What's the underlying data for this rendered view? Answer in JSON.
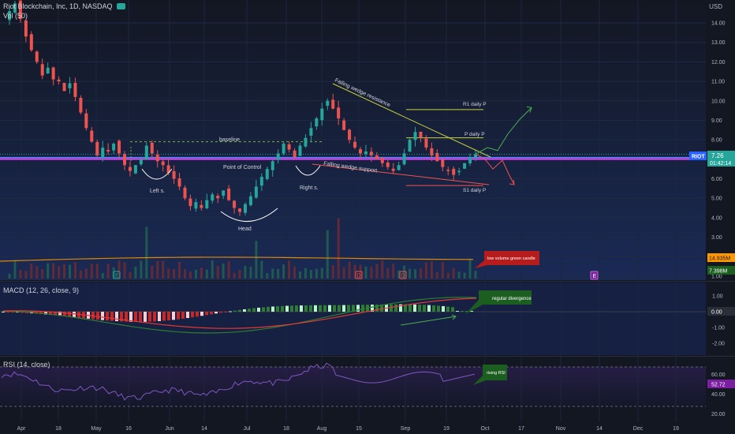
{
  "header": {
    "symbol_title": "Riot Blockchain, Inc, 1D, NASDAQ",
    "volume_title": "Vol (50)",
    "macd_title": "MACD (12, 26, close, 9)",
    "rsi_title": "RSI (14, close)",
    "currency": "USD"
  },
  "price_axis_labels": [
    "14.00",
    "13.00",
    "12.00",
    "11.00",
    "10.00",
    "9.00",
    "8.00",
    "7.00",
    "6.00",
    "5.00",
    "4.00",
    "3.00",
    "2.00",
    "1.00"
  ],
  "macd_axis_labels": [
    "1.00",
    "0.00",
    "-1.00",
    "-2.00"
  ],
  "rsi_axis_labels": [
    "60.00",
    "40.00",
    "20.00"
  ],
  "time_axis": [
    "Apr",
    "18",
    "May",
    "16",
    "Jun",
    "14",
    "Jul",
    "18",
    "Aug",
    "15",
    "Sep",
    "19",
    "Oct",
    "17",
    "Nov",
    "14",
    "Dec",
    "19"
  ],
  "badges": {
    "ticker": "RIOT",
    "last_price": "7.26",
    "countdown": "01:42:14",
    "vol_ma": "14.935M",
    "vol_last": "7.398M",
    "macd_value": "0.00",
    "rsi_value": "52.72"
  },
  "event_markers": [
    "E",
    "D",
    "D",
    "E"
  ],
  "annotations": {
    "baseline": "baseline",
    "poc": "Point of Control",
    "left_shoulder": "Left s.",
    "head": "Head",
    "right_shoulder": "Right s.",
    "fw_resistance": "Falling wedge resistance",
    "fw_support": "Falling wedge support",
    "r1": "R1 daily P",
    "p": "P daily P",
    "s1": "S1 daily P",
    "callout_volume": "low volume green candle",
    "callout_macd": "regular divergence",
    "callout_rsi": "rising RSI"
  },
  "colors": {
    "bull": "#26a69a",
    "bear": "#ef5350",
    "green_line": "#4caf50",
    "poc": "#e040fb",
    "yellow": "#c8d13b",
    "macd": "#2e7d32",
    "signal": "#e53935",
    "rsi": "#7e57c2",
    "callout_red": "#b71c1c",
    "callout_green": "#1b5e20"
  },
  "chart_data": {
    "type": "candlestick",
    "price_range": [
      0.8,
      15.0
    ],
    "levels": {
      "point_of_control": 7.05,
      "baseline": 7.9,
      "r1_daily_pivot": 9.55,
      "daily_pivot": 8.1,
      "s1_daily_pivot": 5.65
    },
    "close_path": [
      14.6,
      15.0,
      14.2,
      13.3,
      12.6,
      12.0,
      11.3,
      11.7,
      11.1,
      11.0,
      10.5,
      10.9,
      10.2,
      9.4,
      8.6,
      7.9,
      7.2,
      7.6,
      7.4,
      7.8,
      7.3,
      6.7,
      6.4,
      6.7,
      7.0,
      7.7,
      7.3,
      6.9,
      6.7,
      6.3,
      6.0,
      5.6,
      5.0,
      4.6,
      4.8,
      4.5,
      4.9,
      5.2,
      5.0,
      5.4,
      4.9,
      4.5,
      4.3,
      4.7,
      5.1,
      5.6,
      6.1,
      6.5,
      6.9,
      7.3,
      7.8,
      7.5,
      7.1,
      7.7,
      8.1,
      8.6,
      9.1,
      9.6,
      10.0,
      9.6,
      9.1,
      8.5,
      8.0,
      7.6,
      7.3,
      7.4,
      7.2,
      7.0,
      6.8,
      6.6,
      6.4,
      6.7,
      7.3,
      8.0,
      8.4,
      8.1,
      7.6,
      7.2,
      6.9,
      6.6,
      6.4,
      6.2,
      6.4,
      6.8,
      7.1,
      7.26
    ],
    "projection": {
      "bullish": [
        7.26,
        7.6,
        7.45,
        8.3,
        9.05,
        9.65
      ],
      "bearish": [
        7.26,
        7.05,
        6.5,
        6.95,
        6.25,
        5.7
      ]
    },
    "macd_range": [
      -2.6,
      1.6
    ],
    "rsi_range": [
      15,
      80
    ]
  }
}
